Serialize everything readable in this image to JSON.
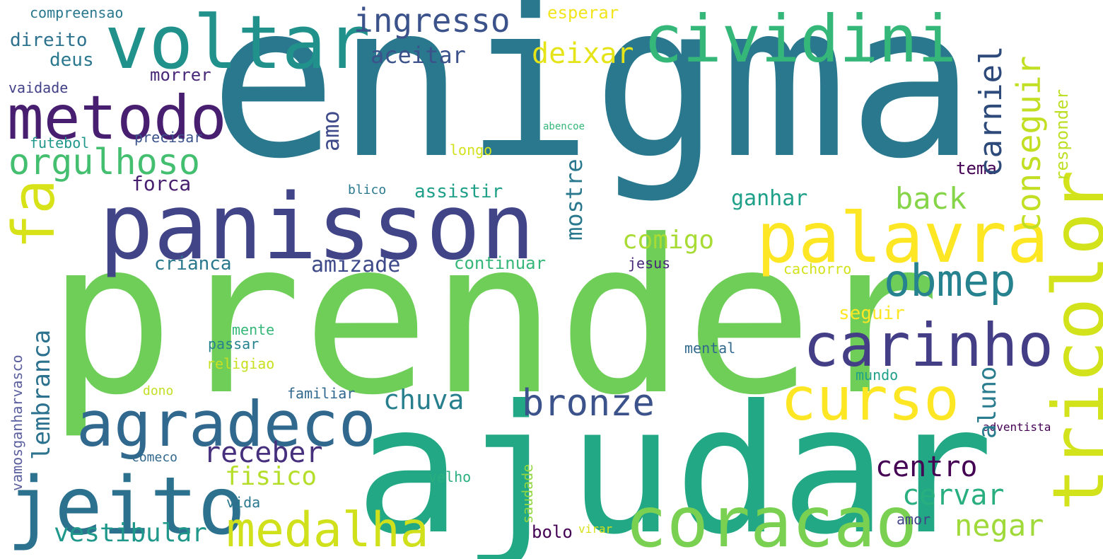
{
  "words": {
    "enigma": {
      "text": "enigma",
      "color": "#2a788e"
    },
    "prender": {
      "text": "prender",
      "color": "#6ece58"
    },
    "ajudar": {
      "text": "ajudar",
      "color": "#22a884"
    },
    "panisson": {
      "text": "panisson",
      "color": "#414487"
    },
    "voltar": {
      "text": "voltar",
      "color": "#21918c"
    },
    "cividini": {
      "text": "cividini",
      "color": "#35b779"
    },
    "metodo": {
      "text": "metodo",
      "color": "#481f70"
    },
    "palavra": {
      "text": "palavra",
      "color": "#fde725"
    },
    "coracao": {
      "text": "coracao",
      "color": "#7ad151"
    },
    "agradeco": {
      "text": "agradeco",
      "color": "#31688e"
    },
    "jeito": {
      "text": "jeito",
      "color": "#2c728e"
    },
    "carinho": {
      "text": "carinho",
      "color": "#433e85"
    },
    "tricolor": {
      "text": "tricolor",
      "color": "#d2e21b"
    },
    "curso": {
      "text": "curso",
      "color": "#fde725"
    },
    "medalha": {
      "text": "medalha",
      "color": "#d0e11c"
    },
    "orgulhoso": {
      "text": "orgulhoso",
      "color": "#44bf70"
    },
    "obmep": {
      "text": "obmep",
      "color": "#26828e"
    },
    "bronze": {
      "text": "bronze",
      "color": "#3b528b"
    },
    "fa": {
      "text": "fa",
      "color": "#d8e219"
    },
    "ingresso": {
      "text": "ingresso",
      "color": "#3b528b"
    },
    "conseguir": {
      "text": "conseguir",
      "color": "#c2df23"
    },
    "carniel": {
      "text": "carniel",
      "color": "#2d4a7a"
    },
    "deixar": {
      "text": "deixar",
      "color": "#e5e419"
    },
    "back": {
      "text": "back",
      "color": "#86d549"
    },
    "negar": {
      "text": "negar",
      "color": "#9fda3a"
    },
    "cervar": {
      "text": "cervar",
      "color": "#29af7f"
    },
    "centro": {
      "text": "centro",
      "color": "#440154"
    },
    "receber": {
      "text": "receber",
      "color": "#46307e"
    },
    "chuva": {
      "text": "chuva",
      "color": "#277f8e"
    },
    "vestibular": {
      "text": "vestibular",
      "color": "#1f988b"
    },
    "comigo": {
      "text": "comigo",
      "color": "#a8db34"
    },
    "fisico": {
      "text": "fisico",
      "color": "#b5de2b"
    },
    "lembranca": {
      "text": "lembranca",
      "color": "#2c728e"
    },
    "amizade": {
      "text": "amizade",
      "color": "#3e4a89"
    },
    "aluno": {
      "text": "aluno",
      "color": "#287c8e"
    },
    "mostre": {
      "text": "mostre",
      "color": "#2a788e"
    },
    "amo": {
      "text": "amo",
      "color": "#3e4a89"
    },
    "aceitar": {
      "text": "aceitar",
      "color": "#3b528b"
    },
    "esperar": {
      "text": "esperar",
      "color": "#f1e51d"
    },
    "direito": {
      "text": "direito",
      "color": "#2c728e"
    },
    "deus": {
      "text": "deus",
      "color": "#2a788e"
    },
    "compreensao": {
      "text": "compreensao",
      "color": "#2a788e"
    },
    "morrer": {
      "text": "morrer",
      "color": "#482878"
    },
    "vaidade": {
      "text": "vaidade",
      "color": "#424086"
    },
    "futebol": {
      "text": "futebol",
      "color": "#1f988b"
    },
    "precisar": {
      "text": "precisar",
      "color": "#3b528b"
    },
    "forca": {
      "text": "forca",
      "color": "#481f70"
    },
    "assistir": {
      "text": "assistir",
      "color": "#1fa088"
    },
    "blico": {
      "text": "blico",
      "color": "#2a788e"
    },
    "longo": {
      "text": "longo",
      "color": "#d2e21b"
    },
    "abencoe": {
      "text": "abencoe",
      "color": "#35b779"
    },
    "responder": {
      "text": "responder",
      "color": "#bddf26"
    },
    "tema": {
      "text": "tema",
      "color": "#440154"
    },
    "ganhar": {
      "text": "ganhar",
      "color": "#1fa088"
    },
    "crianca": {
      "text": "crianca",
      "color": "#2a788e"
    },
    "continuar": {
      "text": "continuar",
      "color": "#35b779"
    },
    "jesus": {
      "text": "jesus",
      "color": "#482878"
    },
    "cachorro": {
      "text": "cachorro",
      "color": "#d2e21b"
    },
    "seguir": {
      "text": "seguir",
      "color": "#fde725"
    },
    "vamosganharvasco": {
      "text": "vamosganharvasco",
      "color": "#5b5f9e"
    },
    "mente": {
      "text": "mente",
      "color": "#35b779"
    },
    "passar": {
      "text": "passar",
      "color": "#26828e"
    },
    "religiao": {
      "text": "religiao",
      "color": "#c8e020"
    },
    "mental": {
      "text": "mental",
      "color": "#31688e"
    },
    "mundo": {
      "text": "mundo",
      "color": "#1fa088"
    },
    "dono": {
      "text": "dono",
      "color": "#c2df23"
    },
    "familiar": {
      "text": "familiar",
      "color": "#31688e"
    },
    "comeco": {
      "text": "comeco",
      "color": "#31688e"
    },
    "saudade": {
      "text": "saudade",
      "color": "#93d741"
    },
    "velho": {
      "text": "velho",
      "color": "#29af7f"
    },
    "vida": {
      "text": "vida",
      "color": "#2a788e"
    },
    "bolo": {
      "text": "bolo",
      "color": "#440154"
    },
    "virar": {
      "text": "virar",
      "color": "#d8e219"
    },
    "amor": {
      "text": "amor",
      "color": "#414487"
    },
    "adventista": {
      "text": "adventista",
      "color": "#440154"
    }
  }
}
